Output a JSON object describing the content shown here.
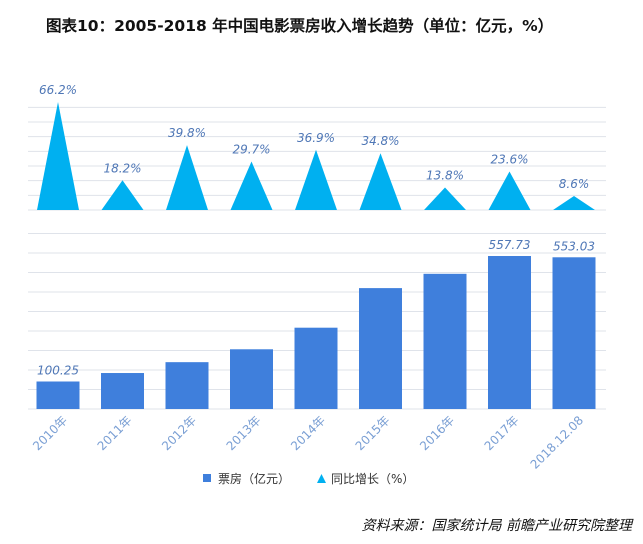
{
  "title": "图表10：2005-2018 年中国电影票房收入增长趋势（单位：亿元，%）",
  "source": "资料来源：国家统计局 前瞻产业研究院整理",
  "colors": {
    "bar": "#3f7fdc",
    "triangle": "#00b0f0",
    "grid": "#dfe3ea",
    "label": "#4f77b6",
    "tick": "#7a9fd4"
  },
  "chart_data": {
    "type": "bar",
    "categories": [
      "2010年",
      "2011年",
      "2012年",
      "2013年",
      "2014年",
      "2015年",
      "2016年",
      "2017年",
      "2018.12.08"
    ],
    "series": [
      {
        "name": "票房（亿元）",
        "type": "bar",
        "values": [
          100.25,
          131.15,
          170.73,
          217.69,
          296.39,
          440.69,
          492.83,
          557.73,
          553.03
        ],
        "labels": [
          "100.25",
          "",
          "",
          "",
          "",
          "",
          "",
          "557.73",
          "553.03"
        ]
      },
      {
        "name": "同比增长（%）",
        "type": "triangle",
        "values": [
          66.2,
          18.2,
          39.8,
          29.7,
          36.9,
          34.8,
          13.8,
          23.6,
          8.6
        ],
        "labels": [
          "66.2%",
          "18.2%",
          "39.8%",
          "29.7%",
          "36.9%",
          "34.8%",
          "13.8%",
          "23.6%",
          "8.6%"
        ]
      }
    ],
    "legend": [
      "票房（亿元）",
      "同比增长（%）"
    ],
    "legend_position": "bottom",
    "grid": true,
    "ylim_bar": [
      0,
      600
    ],
    "ylim_growth": [
      0,
      70
    ]
  }
}
